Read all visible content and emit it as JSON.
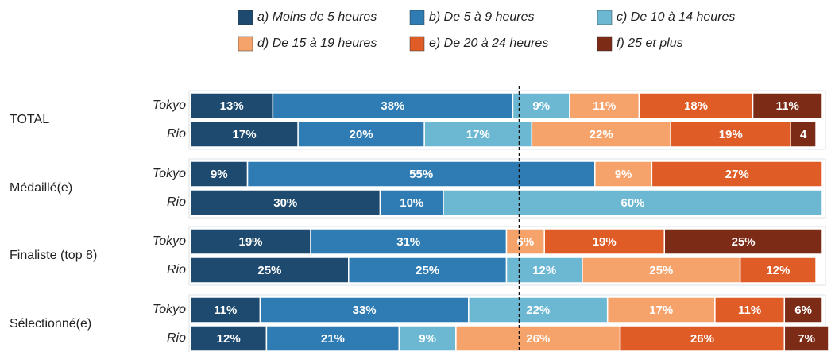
{
  "chart_data": {
    "type": "stacked_bar_horizontal",
    "groups": [
      "TOTAL",
      "Médaillé(e)",
      "Finaliste (top 8)",
      "Sélectionné(e)"
    ],
    "categories": [
      "Tokyo",
      "Rio",
      "Tokyo",
      "Rio",
      "Tokyo",
      "Rio",
      "Tokyo",
      "Rio"
    ],
    "xlim": [
      0,
      100
    ],
    "reference_line": 52,
    "series": [
      {
        "name": "a) Moins de 5 heures",
        "color": "#1d4a6e",
        "values": [
          13,
          17,
          9,
          30,
          19,
          25,
          11,
          12
        ],
        "value_labels": [
          "13%",
          "17%",
          "9%",
          "30%",
          "19%",
          "25%",
          "11%",
          "12%"
        ]
      },
      {
        "name": "b) De 5 à 9 heures",
        "color": "#2f7cb5",
        "values": [
          38,
          20,
          55,
          10,
          31,
          25,
          33,
          21
        ],
        "value_labels": [
          "38%",
          "20%",
          "55%",
          "10%",
          "31%",
          "25%",
          "33%",
          "21%"
        ]
      },
      {
        "name": "c) De 10 à 14 heures",
        "color": "#6cb8d3",
        "values": [
          9,
          17,
          null,
          60,
          null,
          12,
          22,
          9
        ],
        "value_labels": [
          "9%",
          "17%",
          null,
          "60%",
          null,
          "12%",
          "22%",
          "9%"
        ]
      },
      {
        "name": "d) De 15 à 19 heures",
        "color": "#f5a36b",
        "values": [
          11,
          22,
          9,
          null,
          6,
          25,
          17,
          26
        ],
        "value_labels": [
          "11%",
          "22%",
          "9%",
          null,
          "6%",
          "25%",
          "17%",
          "26%"
        ]
      },
      {
        "name": "e) De 20 à 24 heures",
        "color": "#e05c27",
        "values": [
          18,
          19,
          27,
          null,
          19,
          12,
          11,
          26
        ],
        "value_labels": [
          "18%",
          "19%",
          "27%",
          null,
          "19%",
          "12%",
          "11%",
          "26%"
        ]
      },
      {
        "name": "f) 25 et plus",
        "color": "#7b2b16",
        "values": [
          11,
          4,
          null,
          null,
          25,
          null,
          6,
          7
        ],
        "value_labels": [
          "11%",
          "4",
          null,
          null,
          "25%",
          null,
          "6%",
          "7%"
        ]
      }
    ]
  }
}
